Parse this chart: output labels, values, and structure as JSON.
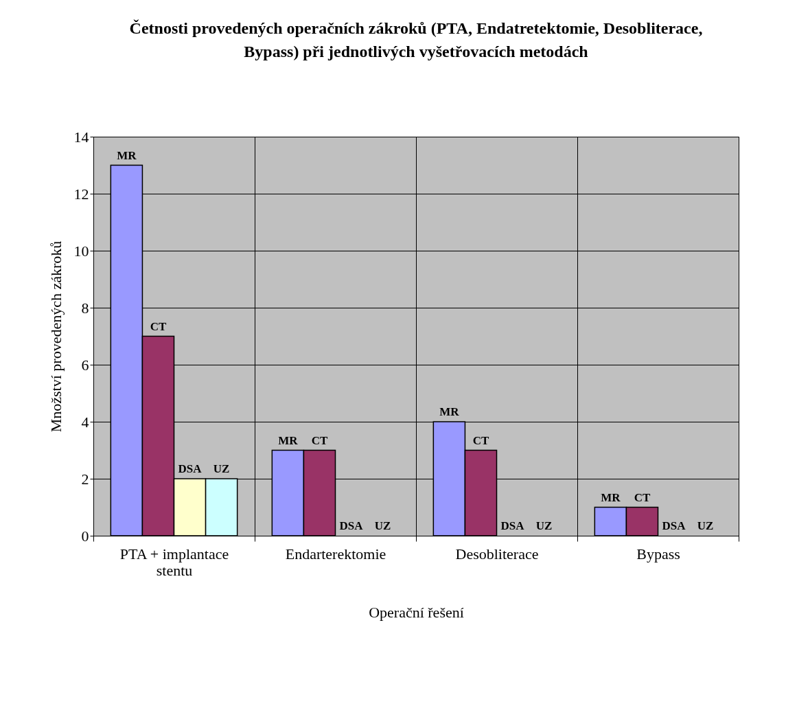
{
  "chart_data": {
    "type": "bar",
    "title": "Četnosti provedených operačních zákroků (PTA, Endatretektomie, Desobliterace, Bypass) při jednotlivých vyšetřovacích metodách",
    "xlabel": "Operační řešení",
    "ylabel": "Množství provedených zákroků",
    "categories": [
      "PTA + implantace stentu",
      "Endarterektomie",
      "Desobliterace",
      "Bypass"
    ],
    "series": [
      {
        "name": "MR",
        "color": "#9999ff",
        "values": [
          13,
          3,
          4,
          1
        ]
      },
      {
        "name": "CT",
        "color": "#993366",
        "values": [
          7,
          3,
          3,
          1
        ]
      },
      {
        "name": "DSA",
        "color": "#ffffcc",
        "values": [
          2,
          0,
          0,
          0
        ]
      },
      {
        "name": "UZ",
        "color": "#ccffff",
        "values": [
          2,
          0,
          0,
          0
        ]
      }
    ],
    "ylim": [
      0,
      14
    ],
    "yticks": [
      0,
      2,
      4,
      6,
      8,
      10,
      12,
      14
    ],
    "grid": true,
    "legend": false
  }
}
